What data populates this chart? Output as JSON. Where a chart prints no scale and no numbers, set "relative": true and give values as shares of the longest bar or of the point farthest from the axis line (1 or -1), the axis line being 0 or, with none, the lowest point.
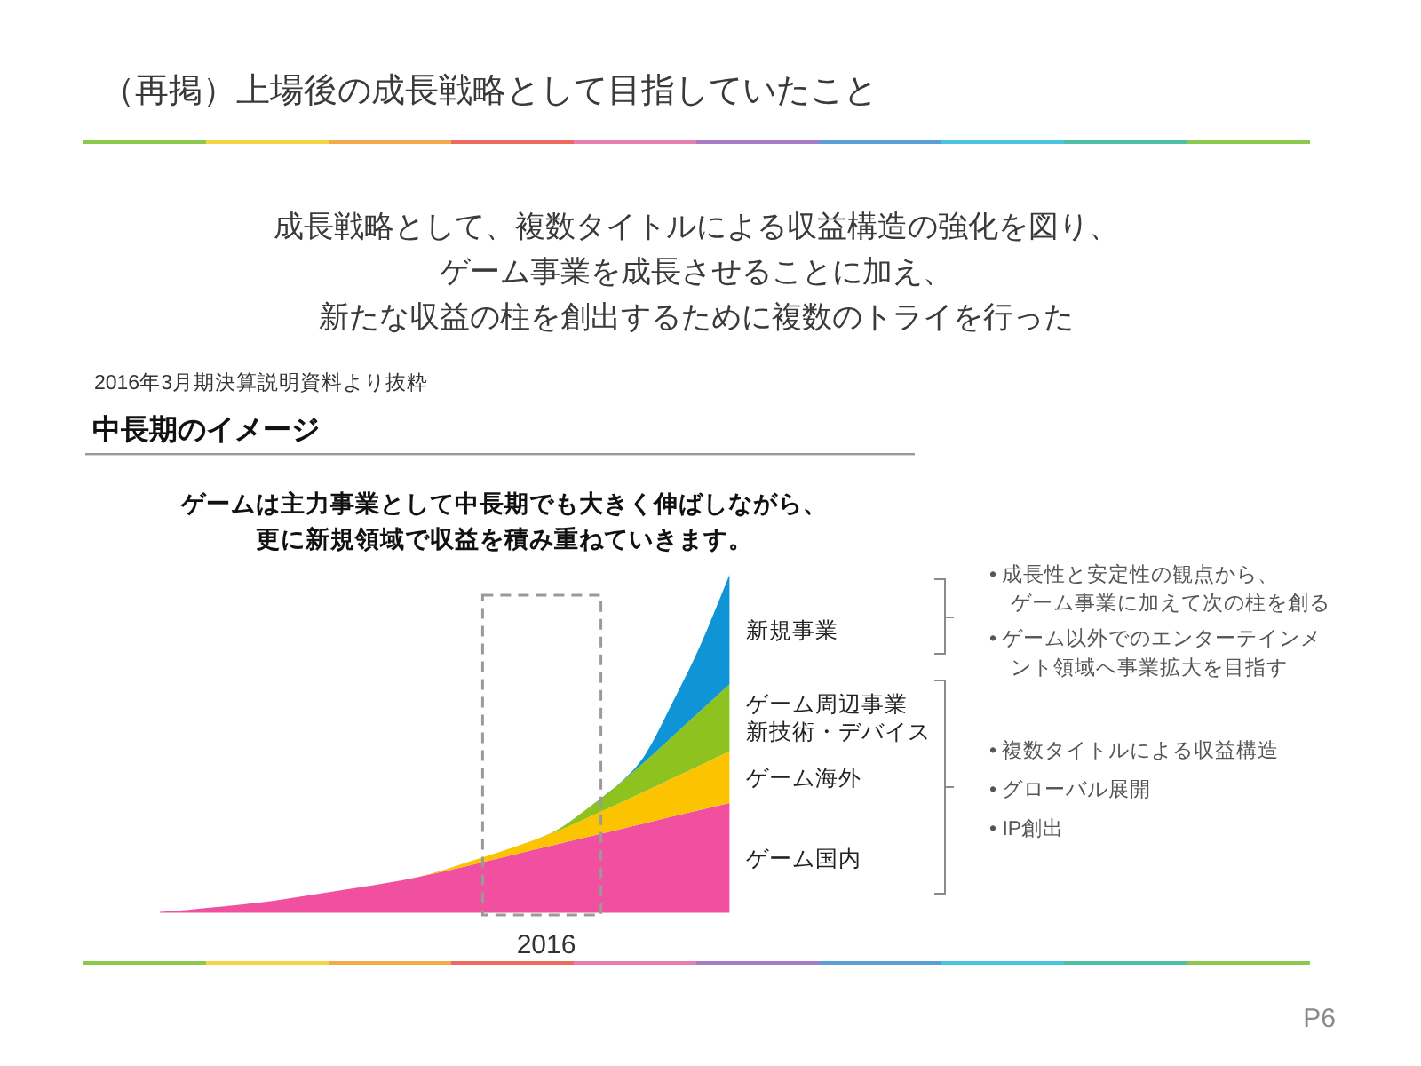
{
  "chart_data": {
    "type": "area",
    "title": "（再掲）上場後の成長戦略として目指していたこと",
    "subtitle": "成長戦略として、複数タイトルによる収益構造の強化を図り、ゲーム事業を成長させることに加え、新たな収益の柱を創出するために複数のトライを行った",
    "annotations": [
      "2016年3月期決算説明資料より抜粋",
      "中長期のイメージ",
      "ゲームは主力事業として中長期でも大きく伸ばしながら、更に新規領域で収益を積み重ねていきます。",
      "2016",
      "• 成長性と安定性の観点から、ゲーム事業に加えて次の柱を創る",
      "• ゲーム以外でのエンターテインメント領域へ事業拡大を目指す",
      "• 複数タイトルによる収益構造",
      "• グローバル展開",
      "• IP創出",
      "P6"
    ],
    "categories": [
      null,
      null,
      null,
      null,
      null,
      null,
      null,
      null,
      null,
      null,
      null,
      null,
      null,
      null,
      null,
      null,
      null,
      null,
      null,
      null,
      null
    ],
    "relative": true,
    "stacked": true,
    "legend": false,
    "series": [
      {
        "name": "ゲーム国内",
        "color": "#f0509f",
        "values": [
          0.003,
          0.009,
          0.017,
          0.026,
          0.036,
          0.049,
          0.062,
          0.075,
          0.089,
          0.105,
          0.123,
          0.143,
          0.163,
          0.184,
          0.204,
          0.224,
          0.244,
          0.264,
          0.285,
          0.305,
          0.325
        ]
      },
      {
        "name": "ゲーム海外",
        "color": "#fbc300",
        "values": [
          0,
          0,
          0,
          0,
          0,
          0,
          0,
          0,
          0,
          0,
          0.005,
          0.012,
          0.019,
          0.027,
          0.039,
          0.057,
          0.075,
          0.094,
          0.113,
          0.133,
          0.153
        ]
      },
      {
        "name": "ゲーム周辺事業新技術・デバイス",
        "color": "#8dc21f",
        "values": [
          0,
          0,
          0,
          0,
          0,
          0,
          0,
          0,
          0,
          0,
          0,
          0,
          0,
          0,
          0.005,
          0.027,
          0.054,
          0.087,
          0.124,
          0.161,
          0.198
        ]
      },
      {
        "name": "新規事業",
        "color": "#0f95d5",
        "values": [
          0,
          0,
          0,
          0,
          0,
          0,
          0,
          0,
          0,
          0,
          0,
          0,
          0,
          0,
          0,
          0,
          0,
          0.018,
          0.1,
          0.197,
          0.324
        ]
      }
    ]
  }
}
